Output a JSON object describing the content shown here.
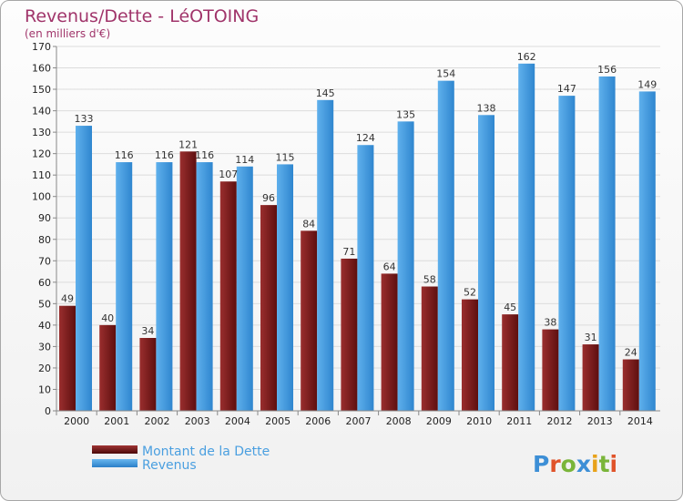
{
  "chart_data": {
    "type": "bar",
    "title": "Revenus/Dette - LéOTOING",
    "subtitle": "(en milliers d'€)",
    "categories": [
      "2000",
      "2001",
      "2002",
      "2003",
      "2004",
      "2005",
      "2006",
      "2007",
      "2008",
      "2009",
      "2010",
      "2011",
      "2012",
      "2013",
      "2014"
    ],
    "series": [
      {
        "name": "Montant de la Dette",
        "color": "#7b1d1d",
        "values": [
          49,
          40,
          34,
          121,
          107,
          96,
          84,
          71,
          64,
          58,
          52,
          45,
          38,
          31,
          24
        ]
      },
      {
        "name": "Revenus",
        "color": "#4a9fe0",
        "values": [
          133,
          116,
          116,
          116,
          114,
          115,
          145,
          124,
          135,
          154,
          138,
          162,
          147,
          156,
          149
        ]
      }
    ],
    "ylim": [
      0,
      170
    ],
    "ytick_step": 10,
    "grid": true,
    "legend": "bottom-left"
  },
  "colors": {
    "title": "#a0346a",
    "debt": "#7b1d1d",
    "revenue": "#4a9fe0"
  },
  "logo": {
    "text": "Proxiti"
  }
}
